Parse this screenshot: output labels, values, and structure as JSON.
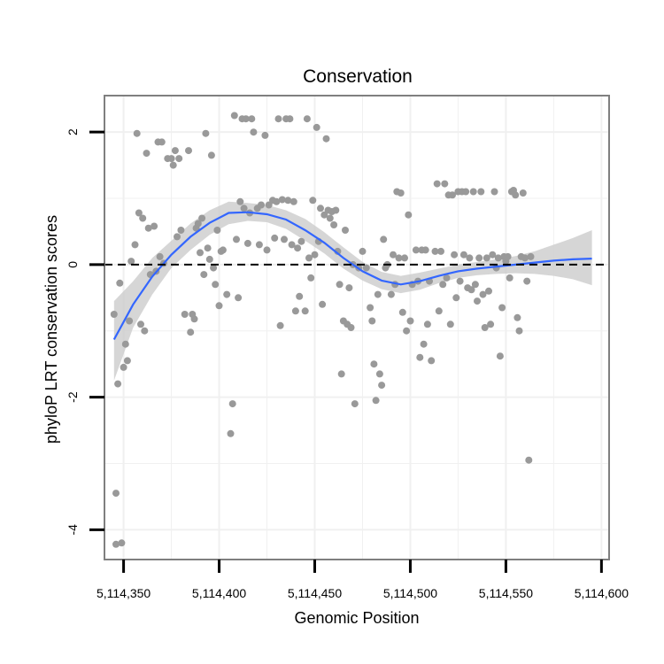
{
  "chart_data": {
    "type": "scatter",
    "title": "Conservation",
    "xlabel": "Genomic Position",
    "ylabel": "phyloP LRT conservation scores",
    "xlim": [
      5114340,
      5114604
    ],
    "ylim": [
      -4.45,
      2.55
    ],
    "x_ticks": [
      {
        "value": 5114350,
        "label": "5,114,350"
      },
      {
        "value": 5114400,
        "label": "5,114,400"
      },
      {
        "value": 5114450,
        "label": "5,114,450"
      },
      {
        "value": 5114500,
        "label": "5,114,500"
      },
      {
        "value": 5114550,
        "label": "5,114,550"
      },
      {
        "value": 5114600,
        "label": "5,114,600"
      }
    ],
    "y_ticks": [
      {
        "value": 2,
        "label": "2"
      },
      {
        "value": 0,
        "label": "0"
      },
      {
        "value": -2,
        "label": "-2"
      },
      {
        "value": -4,
        "label": "-4"
      }
    ],
    "reference_line": {
      "y": 0,
      "style": "dashed"
    },
    "grid": true,
    "colors": {
      "points": "#999999",
      "smooth": "#3366ff",
      "ribbon": "#cccccc",
      "panel_border": "#7f7f7f",
      "grid": "#f0f0f0"
    },
    "points": [
      [
        5114345,
        -0.75
      ],
      [
        5114346,
        -3.45
      ],
      [
        5114346,
        -4.22
      ],
      [
        5114347,
        -1.8
      ],
      [
        5114348,
        -0.28
      ],
      [
        5114349,
        -4.2
      ],
      [
        5114350,
        -1.55
      ],
      [
        5114351,
        -1.2
      ],
      [
        5114352,
        -1.45
      ],
      [
        5114353,
        -0.85
      ],
      [
        5114354,
        0.05
      ],
      [
        5114356,
        0.3
      ],
      [
        5114357,
        1.98
      ],
      [
        5114358,
        0.78
      ],
      [
        5114359,
        -0.9
      ],
      [
        5114360,
        0.7
      ],
      [
        5114361,
        -1.0
      ],
      [
        5114362,
        1.68
      ],
      [
        5114363,
        0.55
      ],
      [
        5114364,
        -0.15
      ],
      [
        5114366,
        0.58
      ],
      [
        5114367,
        -0.1
      ],
      [
        5114368,
        1.85
      ],
      [
        5114369,
        0.12
      ],
      [
        5114370,
        1.85
      ],
      [
        5114371,
        0.02
      ],
      [
        5114373,
        1.6
      ],
      [
        5114375,
        1.6
      ],
      [
        5114376,
        1.5
      ],
      [
        5114377,
        1.72
      ],
      [
        5114378,
        0.42
      ],
      [
        5114379,
        1.6
      ],
      [
        5114380,
        0.52
      ],
      [
        5114382,
        -0.75
      ],
      [
        5114384,
        1.72
      ],
      [
        5114385,
        -1.02
      ],
      [
        5114386,
        -0.75
      ],
      [
        5114387,
        -0.82
      ],
      [
        5114388,
        0.55
      ],
      [
        5114389,
        0.62
      ],
      [
        5114390,
        0.18
      ],
      [
        5114391,
        0.7
      ],
      [
        5114392,
        -0.15
      ],
      [
        5114393,
        1.98
      ],
      [
        5114394,
        0.25
      ],
      [
        5114395,
        0.08
      ],
      [
        5114396,
        1.65
      ],
      [
        5114397,
        -0.05
      ],
      [
        5114398,
        -0.3
      ],
      [
        5114399,
        0.52
      ],
      [
        5114400,
        -0.62
      ],
      [
        5114401,
        0.2
      ],
      [
        5114402,
        0.22
      ],
      [
        5114404,
        -0.45
      ],
      [
        5114406,
        -2.55
      ],
      [
        5114407,
        -2.1
      ],
      [
        5114408,
        2.25
      ],
      [
        5114409,
        0.38
      ],
      [
        5114410,
        -0.5
      ],
      [
        5114411,
        0.95
      ],
      [
        5114412,
        2.2
      ],
      [
        5114413,
        0.85
      ],
      [
        5114414,
        2.2
      ],
      [
        5114415,
        0.32
      ],
      [
        5114416,
        0.78
      ],
      [
        5114417,
        2.2
      ],
      [
        5114418,
        2.0
      ],
      [
        5114420,
        0.85
      ],
      [
        5114421,
        0.3
      ],
      [
        5114422,
        0.9
      ],
      [
        5114424,
        1.95
      ],
      [
        5114425,
        0.22
      ],
      [
        5114426,
        0.9
      ],
      [
        5114428,
        0.97
      ],
      [
        5114429,
        0.4
      ],
      [
        5114430,
        0.95
      ],
      [
        5114431,
        2.2
      ],
      [
        5114432,
        -0.92
      ],
      [
        5114433,
        0.98
      ],
      [
        5114434,
        0.38
      ],
      [
        5114435,
        2.2
      ],
      [
        5114436,
        0.97
      ],
      [
        5114437,
        2.2
      ],
      [
        5114438,
        0.3
      ],
      [
        5114439,
        0.95
      ],
      [
        5114440,
        -0.7
      ],
      [
        5114441,
        0.25
      ],
      [
        5114442,
        -0.48
      ],
      [
        5114443,
        0.35
      ],
      [
        5114445,
        -0.7
      ],
      [
        5114446,
        2.2
      ],
      [
        5114447,
        0.1
      ],
      [
        5114448,
        -0.2
      ],
      [
        5114449,
        0.97
      ],
      [
        5114450,
        0.15
      ],
      [
        5114451,
        2.07
      ],
      [
        5114452,
        0.35
      ],
      [
        5114453,
        0.85
      ],
      [
        5114454,
        -0.6
      ],
      [
        5114455,
        0.75
      ],
      [
        5114456,
        1.9
      ],
      [
        5114457,
        0.82
      ],
      [
        5114458,
        0.7
      ],
      [
        5114459,
        0.8
      ],
      [
        5114460,
        0.6
      ],
      [
        5114461,
        0.82
      ],
      [
        5114462,
        0.2
      ],
      [
        5114463,
        -0.3
      ],
      [
        5114464,
        -1.65
      ],
      [
        5114465,
        -0.85
      ],
      [
        5114466,
        0.52
      ],
      [
        5114467,
        -0.9
      ],
      [
        5114468,
        -0.35
      ],
      [
        5114469,
        -0.95
      ],
      [
        5114470,
        0.0
      ],
      [
        5114471,
        -2.1
      ],
      [
        5114473,
        -0.05
      ],
      [
        5114475,
        0.2
      ],
      [
        5114477,
        -0.05
      ],
      [
        5114479,
        -0.65
      ],
      [
        5114480,
        -0.85
      ],
      [
        5114481,
        -1.5
      ],
      [
        5114482,
        -2.05
      ],
      [
        5114483,
        -0.45
      ],
      [
        5114484,
        -1.65
      ],
      [
        5114485,
        -1.82
      ],
      [
        5114486,
        0.38
      ],
      [
        5114487,
        -0.05
      ],
      [
        5114488,
        0.0
      ],
      [
        5114490,
        -0.45
      ],
      [
        5114491,
        0.15
      ],
      [
        5114492,
        -0.3
      ],
      [
        5114493,
        1.1
      ],
      [
        5114494,
        0.1
      ],
      [
        5114495,
        1.08
      ],
      [
        5114496,
        -0.72
      ],
      [
        5114497,
        0.1
      ],
      [
        5114498,
        -1.0
      ],
      [
        5114499,
        0.75
      ],
      [
        5114500,
        -0.85
      ],
      [
        5114501,
        -0.3
      ],
      [
        5114503,
        0.22
      ],
      [
        5114504,
        -0.25
      ],
      [
        5114505,
        -1.4
      ],
      [
        5114506,
        0.22
      ],
      [
        5114507,
        -1.2
      ],
      [
        5114508,
        0.22
      ],
      [
        5114509,
        -0.9
      ],
      [
        5114510,
        -0.25
      ],
      [
        5114511,
        -1.45
      ],
      [
        5114513,
        0.2
      ],
      [
        5114514,
        1.22
      ],
      [
        5114515,
        -0.7
      ],
      [
        5114516,
        0.2
      ],
      [
        5114517,
        -0.3
      ],
      [
        5114518,
        1.22
      ],
      [
        5114519,
        -0.2
      ],
      [
        5114520,
        1.05
      ],
      [
        5114521,
        -0.9
      ],
      [
        5114522,
        1.05
      ],
      [
        5114523,
        0.15
      ],
      [
        5114524,
        -0.5
      ],
      [
        5114525,
        1.1
      ],
      [
        5114526,
        -0.25
      ],
      [
        5114527,
        1.1
      ],
      [
        5114528,
        0.15
      ],
      [
        5114529,
        1.1
      ],
      [
        5114530,
        -0.35
      ],
      [
        5114531,
        0.1
      ],
      [
        5114532,
        -0.38
      ],
      [
        5114533,
        1.1
      ],
      [
        5114534,
        -0.3
      ],
      [
        5114535,
        -0.55
      ],
      [
        5114536,
        0.1
      ],
      [
        5114537,
        1.1
      ],
      [
        5114538,
        -0.45
      ],
      [
        5114539,
        -0.95
      ],
      [
        5114540,
        0.1
      ],
      [
        5114541,
        -0.4
      ],
      [
        5114542,
        -0.9
      ],
      [
        5114543,
        0.15
      ],
      [
        5114544,
        1.1
      ],
      [
        5114545,
        -0.05
      ],
      [
        5114546,
        0.1
      ],
      [
        5114547,
        -1.38
      ],
      [
        5114548,
        -0.65
      ],
      [
        5114549,
        0.12
      ],
      [
        5114550,
        0.05
      ],
      [
        5114551,
        0.12
      ],
      [
        5114552,
        -0.2
      ],
      [
        5114553,
        1.1
      ],
      [
        5114554,
        1.12
      ],
      [
        5114555,
        1.05
      ],
      [
        5114556,
        -0.8
      ],
      [
        5114557,
        -1.0
      ],
      [
        5114558,
        0.12
      ],
      [
        5114559,
        1.08
      ],
      [
        5114560,
        0.1
      ],
      [
        5114561,
        -0.25
      ],
      [
        5114562,
        -2.95
      ],
      [
        5114563,
        0.12
      ]
    ],
    "smooth": {
      "x": [
        5114345,
        5114355,
        5114365,
        5114375,
        5114385,
        5114395,
        5114405,
        5114415,
        5114425,
        5114435,
        5114445,
        5114455,
        5114465,
        5114475,
        5114485,
        5114495,
        5114505,
        5114515,
        5114525,
        5114535,
        5114545,
        5114555,
        5114565,
        5114575,
        5114585,
        5114595
      ],
      "y": [
        -1.13,
        -0.6,
        -0.18,
        0.15,
        0.42,
        0.63,
        0.78,
        0.79,
        0.76,
        0.68,
        0.52,
        0.33,
        0.1,
        -0.1,
        -0.24,
        -0.3,
        -0.25,
        -0.17,
        -0.1,
        -0.06,
        -0.03,
        0.0,
        0.03,
        0.06,
        0.08,
        0.09
      ],
      "lower": [
        -1.75,
        -0.95,
        -0.45,
        -0.05,
        0.22,
        0.45,
        0.61,
        0.66,
        0.64,
        0.54,
        0.36,
        0.17,
        -0.06,
        -0.24,
        -0.37,
        -0.43,
        -0.38,
        -0.28,
        -0.2,
        -0.16,
        -0.14,
        -0.13,
        -0.14,
        -0.17,
        -0.22,
        -0.31
      ],
      "upper": [
        -0.55,
        -0.25,
        0.1,
        0.36,
        0.62,
        0.82,
        0.95,
        0.93,
        0.9,
        0.82,
        0.69,
        0.49,
        0.26,
        0.04,
        -0.11,
        -0.17,
        -0.12,
        -0.06,
        0.0,
        0.04,
        0.08,
        0.13,
        0.2,
        0.3,
        0.4,
        0.52
      ]
    }
  }
}
